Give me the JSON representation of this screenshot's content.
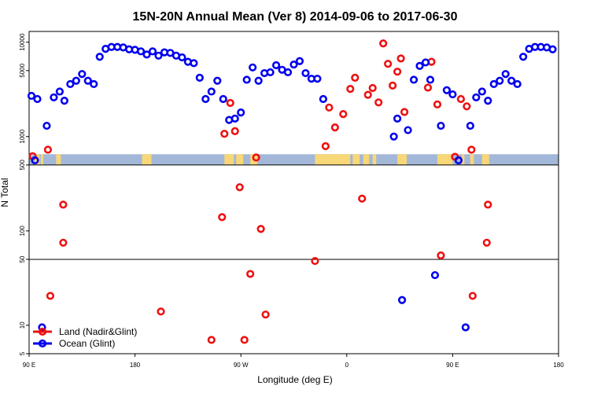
{
  "chart_data": {
    "type": "scatter",
    "title": "15N-20N Annual Mean (Ver 8)   2014-09-06 to 2017-06-30",
    "xlabel": "Longitude (deg E)",
    "ylabel": "N Total",
    "y_scale": "log",
    "ylim": [
      5,
      13000
    ],
    "x_axis": {
      "note": "longitude unwrapped from 90E eastward; x value 90 = 90 E, 180 = 180, 270 = 90 W, 360 = 0, 450 = 90 E, 540 = 180",
      "range": [
        90,
        540
      ],
      "ticks": [
        {
          "x": 90,
          "label": "90 E"
        },
        {
          "x": 180,
          "label": "180"
        },
        {
          "x": 270,
          "label": "90 W"
        },
        {
          "x": 360,
          "label": "0"
        },
        {
          "x": 450,
          "label": "90 E"
        },
        {
          "x": 540,
          "label": "180"
        }
      ]
    },
    "y_ticks": [
      {
        "v": 5,
        "label": "5"
      },
      {
        "v": 10,
        "label": "10"
      },
      {
        "v": 50,
        "label": "50"
      },
      {
        "v": 100,
        "label": "100"
      },
      {
        "v": 500,
        "label": "500"
      },
      {
        "v": 1000,
        "label": "1000"
      },
      {
        "v": 5000,
        "label": "5000"
      },
      {
        "v": 10000,
        "label": "10000"
      }
    ],
    "reference_lines": [
      50,
      500
    ],
    "land_strip": {
      "range": [
        500,
        650
      ],
      "ocean_color": "#a3b8d8",
      "land_color": "#f8d778",
      "land_segments": [
        [
          95,
          99
        ],
        [
          100,
          102
        ],
        [
          113,
          117
        ],
        [
          186,
          194
        ],
        [
          256,
          264
        ],
        [
          266,
          272
        ],
        [
          278,
          284
        ],
        [
          333,
          363
        ],
        [
          365,
          371
        ],
        [
          374,
          379
        ],
        [
          382,
          385
        ],
        [
          403,
          411
        ],
        [
          437,
          450
        ],
        [
          458,
          460
        ],
        [
          465,
          468
        ],
        [
          475,
          481
        ]
      ]
    },
    "series": [
      {
        "name": "Land (Nadir&Glint)",
        "color": "#ee1111",
        "points": [
          {
            "x": 93,
            "y": 620
          },
          {
            "x": 106,
            "y": 725
          },
          {
            "x": 108,
            "y": 20.5
          },
          {
            "x": 119,
            "y": 75
          },
          {
            "x": 119,
            "y": 190
          },
          {
            "x": 202,
            "y": 14
          },
          {
            "x": 245,
            "y": 7
          },
          {
            "x": 254,
            "y": 140
          },
          {
            "x": 256,
            "y": 1070
          },
          {
            "x": 261,
            "y": 2270
          },
          {
            "x": 265,
            "y": 1140
          },
          {
            "x": 269,
            "y": 290
          },
          {
            "x": 273,
            "y": 7
          },
          {
            "x": 278,
            "y": 35
          },
          {
            "x": 283,
            "y": 600
          },
          {
            "x": 287,
            "y": 105
          },
          {
            "x": 291,
            "y": 13
          },
          {
            "x": 333,
            "y": 48
          },
          {
            "x": 342,
            "y": 790
          },
          {
            "x": 345,
            "y": 2030
          },
          {
            "x": 350,
            "y": 1250
          },
          {
            "x": 357,
            "y": 1730
          },
          {
            "x": 363,
            "y": 3200
          },
          {
            "x": 367,
            "y": 4200
          },
          {
            "x": 373,
            "y": 220
          },
          {
            "x": 378,
            "y": 2770
          },
          {
            "x": 382,
            "y": 3270
          },
          {
            "x": 387,
            "y": 2300
          },
          {
            "x": 391,
            "y": 9700
          },
          {
            "x": 395,
            "y": 5900
          },
          {
            "x": 399,
            "y": 3470
          },
          {
            "x": 403,
            "y": 4870
          },
          {
            "x": 406,
            "y": 6720
          },
          {
            "x": 409,
            "y": 1820
          },
          {
            "x": 429,
            "y": 3300
          },
          {
            "x": 432,
            "y": 6200
          },
          {
            "x": 437,
            "y": 2190
          },
          {
            "x": 440,
            "y": 55
          },
          {
            "x": 452,
            "y": 610
          },
          {
            "x": 457,
            "y": 2500
          },
          {
            "x": 462,
            "y": 2090
          },
          {
            "x": 466,
            "y": 725
          },
          {
            "x": 467,
            "y": 20.5
          },
          {
            "x": 479,
            "y": 75
          },
          {
            "x": 480,
            "y": 190
          }
        ]
      },
      {
        "name": "Ocean (Glint)",
        "color": "#0000ee",
        "points": [
          {
            "x": 92,
            "y": 2700
          },
          {
            "x": 95,
            "y": 560
          },
          {
            "x": 97,
            "y": 2500
          },
          {
            "x": 101,
            "y": 9.5
          },
          {
            "x": 105,
            "y": 1300
          },
          {
            "x": 111,
            "y": 2600
          },
          {
            "x": 116,
            "y": 3000
          },
          {
            "x": 120,
            "y": 2400
          },
          {
            "x": 125,
            "y": 3600
          },
          {
            "x": 130,
            "y": 3900
          },
          {
            "x": 135,
            "y": 4600
          },
          {
            "x": 140,
            "y": 3900
          },
          {
            "x": 145,
            "y": 3600
          },
          {
            "x": 150,
            "y": 7000
          },
          {
            "x": 155,
            "y": 8500
          },
          {
            "x": 160,
            "y": 8900
          },
          {
            "x": 165,
            "y": 8900
          },
          {
            "x": 170,
            "y": 8800
          },
          {
            "x": 175,
            "y": 8400
          },
          {
            "x": 180,
            "y": 8300
          },
          {
            "x": 185,
            "y": 8000
          },
          {
            "x": 190,
            "y": 7400
          },
          {
            "x": 195,
            "y": 8000
          },
          {
            "x": 200,
            "y": 7200
          },
          {
            "x": 205,
            "y": 7800
          },
          {
            "x": 210,
            "y": 7700
          },
          {
            "x": 215,
            "y": 7200
          },
          {
            "x": 220,
            "y": 6900
          },
          {
            "x": 225,
            "y": 6200
          },
          {
            "x": 230,
            "y": 6000
          },
          {
            "x": 235,
            "y": 4200
          },
          {
            "x": 240,
            "y": 2500
          },
          {
            "x": 245,
            "y": 3000
          },
          {
            "x": 250,
            "y": 3900
          },
          {
            "x": 255,
            "y": 2500
          },
          {
            "x": 260,
            "y": 1500
          },
          {
            "x": 265,
            "y": 1550
          },
          {
            "x": 270,
            "y": 1800
          },
          {
            "x": 275,
            "y": 4000
          },
          {
            "x": 280,
            "y": 5400
          },
          {
            "x": 285,
            "y": 3900
          },
          {
            "x": 290,
            "y": 4700
          },
          {
            "x": 295,
            "y": 4800
          },
          {
            "x": 300,
            "y": 5700
          },
          {
            "x": 305,
            "y": 5100
          },
          {
            "x": 310,
            "y": 4800
          },
          {
            "x": 315,
            "y": 5800
          },
          {
            "x": 320,
            "y": 6300
          },
          {
            "x": 325,
            "y": 4700
          },
          {
            "x": 330,
            "y": 4100
          },
          {
            "x": 335,
            "y": 4100
          },
          {
            "x": 340,
            "y": 2500
          },
          {
            "x": 400,
            "y": 1000
          },
          {
            "x": 403,
            "y": 1550
          },
          {
            "x": 407,
            "y": 18.5
          },
          {
            "x": 412,
            "y": 1170
          },
          {
            "x": 417,
            "y": 4000
          },
          {
            "x": 422,
            "y": 5600
          },
          {
            "x": 427,
            "y": 6100
          },
          {
            "x": 431,
            "y": 4000
          },
          {
            "x": 435,
            "y": 34
          },
          {
            "x": 440,
            "y": 1300
          },
          {
            "x": 445,
            "y": 3100
          },
          {
            "x": 450,
            "y": 2800
          },
          {
            "x": 455,
            "y": 560
          },
          {
            "x": 461,
            "y": 9.5
          },
          {
            "x": 465,
            "y": 1300
          },
          {
            "x": 470,
            "y": 2600
          },
          {
            "x": 475,
            "y": 3000
          },
          {
            "x": 480,
            "y": 2400
          },
          {
            "x": 485,
            "y": 3600
          },
          {
            "x": 490,
            "y": 3900
          },
          {
            "x": 495,
            "y": 4600
          },
          {
            "x": 500,
            "y": 3900
          },
          {
            "x": 505,
            "y": 3600
          },
          {
            "x": 510,
            "y": 7000
          },
          {
            "x": 515,
            "y": 8500
          },
          {
            "x": 520,
            "y": 8900
          },
          {
            "x": 525,
            "y": 8900
          },
          {
            "x": 530,
            "y": 8800
          },
          {
            "x": 535,
            "y": 8400
          }
        ]
      }
    ],
    "legend": {
      "position": "bottom-left",
      "entries": [
        {
          "label": "Land (Nadir&Glint)",
          "color": "#ee1111"
        },
        {
          "label": "Ocean (Glint)",
          "color": "#0000ee"
        }
      ]
    }
  }
}
